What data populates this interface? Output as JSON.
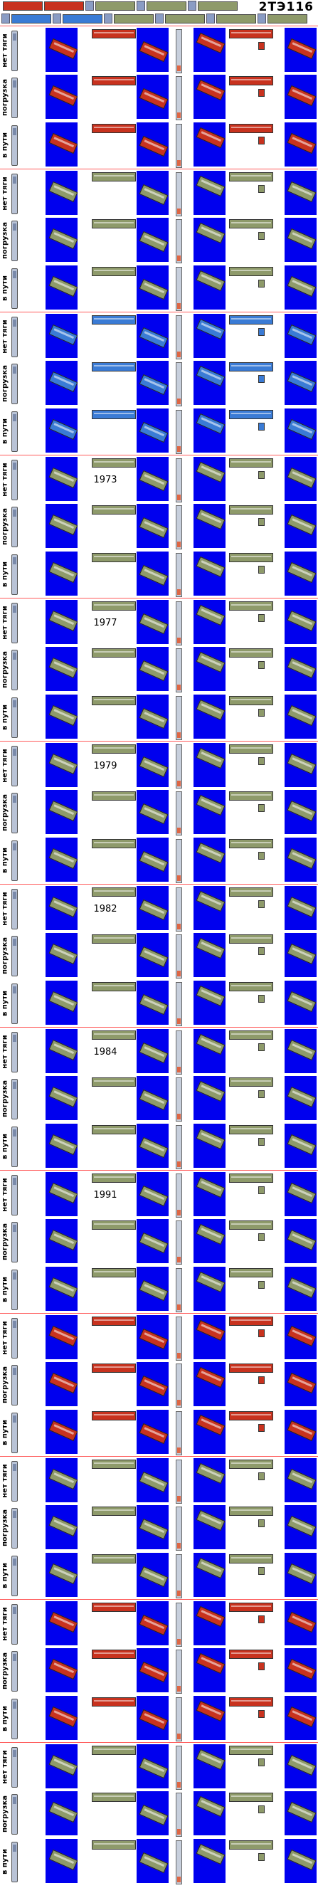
{
  "title": "2ТЭ116",
  "row_labels": [
    "нет тяги",
    "погрузка",
    "в пути"
  ],
  "groups": [
    {
      "variant": "red",
      "year": ""
    },
    {
      "variant": "gray",
      "year": ""
    },
    {
      "variant": "blue",
      "year": ""
    },
    {
      "variant": "gray",
      "year": "1973"
    },
    {
      "variant": "gray",
      "year": "1977"
    },
    {
      "variant": "gray",
      "year": "1979"
    },
    {
      "variant": "gray",
      "year": "1982"
    },
    {
      "variant": "gray",
      "year": "1984"
    },
    {
      "variant": "gray",
      "year": "1991"
    },
    {
      "variant": "red",
      "year": ""
    },
    {
      "variant": "gray",
      "year": ""
    },
    {
      "variant": "red",
      "year": ""
    },
    {
      "variant": "gray",
      "year": ""
    }
  ],
  "colors": {
    "panel_blue": "#0000ee",
    "separator_red": "#ff5a5a",
    "livery_red": "#c8321e",
    "livery_gray": "#8e9a6a",
    "livery_blue": "#3a7bd5"
  },
  "icons": {
    "vertical_sprite": "locomotive-vertical-sprite",
    "diagonal_sprite": "locomotive-diagonal-sprite",
    "horizontal_sprite": "locomotive-horizontal-sprite"
  }
}
